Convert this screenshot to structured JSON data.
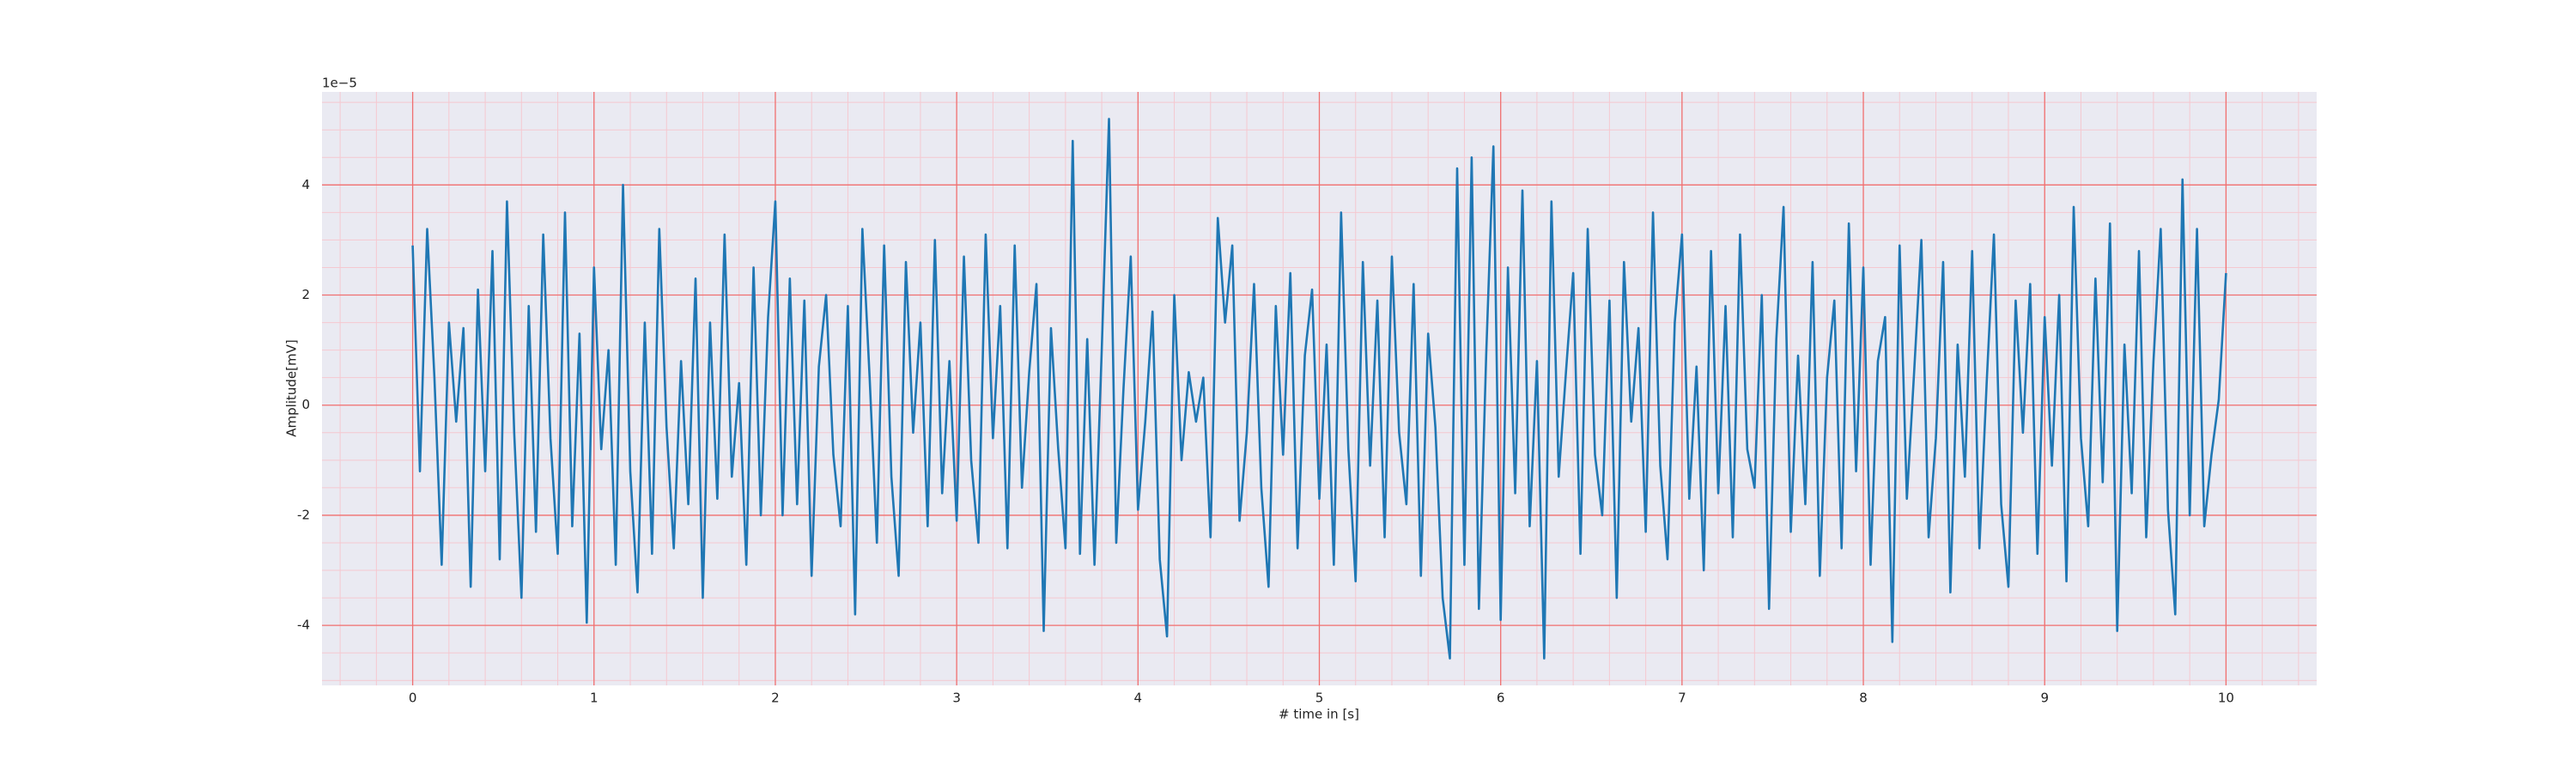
{
  "chart_data": {
    "type": "line",
    "xlabel": "# time in [s]",
    "ylabel": "Amplitude[mV]",
    "offset_text": "1e−5",
    "color": "#1f77b4",
    "background": "#eaeaf2",
    "grid": true,
    "grid_color": "#f07070",
    "minor_grid": {
      "x": 0.2,
      "y": 0.5,
      "color": "#f5c8d0"
    },
    "xlim": [
      -0.5,
      10.5
    ],
    "ylim": [
      -5.09,
      5.69
    ],
    "xticks": [
      0,
      1,
      2,
      3,
      4,
      5,
      6,
      7,
      8,
      9,
      10
    ],
    "yticks": [
      -4,
      -2,
      0,
      2,
      4
    ],
    "x": [
      0,
      0.04,
      0.08,
      0.12,
      0.16,
      0.2,
      0.24,
      0.28,
      0.32,
      0.36,
      0.4,
      0.44,
      0.48,
      0.52,
      0.56,
      0.6,
      0.64,
      0.68,
      0.72,
      0.76,
      0.8,
      0.84,
      0.88,
      0.92,
      0.96,
      1,
      1.04,
      1.08,
      1.12,
      1.16,
      1.2,
      1.24,
      1.28,
      1.32,
      1.36,
      1.4,
      1.44,
      1.48,
      1.52,
      1.56,
      1.6,
      1.64,
      1.68,
      1.72,
      1.76,
      1.8,
      1.84,
      1.88,
      1.92,
      1.96,
      2,
      2.04,
      2.08,
      2.12,
      2.16,
      2.2,
      2.24,
      2.28,
      2.32,
      2.36,
      2.4,
      2.44,
      2.48,
      2.52,
      2.56,
      2.6,
      2.64,
      2.68,
      2.72,
      2.76,
      2.8,
      2.84,
      2.88,
      2.92,
      2.96,
      3,
      3.04,
      3.08,
      3.12,
      3.16,
      3.2,
      3.24,
      3.28,
      3.32,
      3.36,
      3.4,
      3.44,
      3.48,
      3.52,
      3.56,
      3.6,
      3.64,
      3.68,
      3.72,
      3.76,
      3.8,
      3.84,
      3.88,
      3.92,
      3.96,
      4,
      4.04,
      4.08,
      4.12,
      4.16,
      4.2,
      4.24,
      4.28,
      4.32,
      4.36,
      4.4,
      4.44,
      4.48,
      4.52,
      4.56,
      4.6,
      4.64,
      4.68,
      4.72,
      4.76,
      4.8,
      4.84,
      4.88,
      4.92,
      4.96,
      5,
      5.04,
      5.08,
      5.12,
      5.16,
      5.2,
      5.24,
      5.28,
      5.32,
      5.36,
      5.4,
      5.44,
      5.48,
      5.52,
      5.56,
      5.6,
      5.64,
      5.68,
      5.72,
      5.76,
      5.8,
      5.84,
      5.88,
      5.92,
      5.96,
      6,
      6.04,
      6.08,
      6.12,
      6.16,
      6.2,
      6.24,
      6.28,
      6.32,
      6.36,
      6.4,
      6.44,
      6.48,
      6.52,
      6.56,
      6.6,
      6.64,
      6.68,
      6.72,
      6.76,
      6.8,
      6.84,
      6.88,
      6.92,
      6.96,
      7,
      7.04,
      7.08,
      7.12,
      7.16,
      7.2,
      7.24,
      7.28,
      7.32,
      7.36,
      7.4,
      7.44,
      7.48,
      7.52,
      7.56,
      7.6,
      7.64,
      7.68,
      7.72,
      7.76,
      7.8,
      7.84,
      7.88,
      7.92,
      7.96,
      8,
      8.04,
      8.08,
      8.12,
      8.16,
      8.2,
      8.24,
      8.28,
      8.32,
      8.36,
      8.4,
      8.44,
      8.48,
      8.52,
      8.56,
      8.6,
      8.64,
      8.68,
      8.72,
      8.76,
      8.8,
      8.84,
      8.88,
      8.92,
      8.96,
      9,
      9.04,
      9.08,
      9.12,
      9.16,
      9.2,
      9.24,
      9.28,
      9.32,
      9.36,
      9.4,
      9.44,
      9.48,
      9.52,
      9.56,
      9.6,
      9.64,
      9.68,
      9.72,
      9.76,
      9.8,
      9.84,
      9.88,
      9.92,
      9.96,
      10
    ],
    "values": [
      2.9,
      -1.2,
      3.2,
      0.5,
      -2.9,
      1.5,
      -0.3,
      1.4,
      -3.3,
      2.1,
      -1.2,
      2.8,
      -2.8,
      3.7,
      -0.5,
      -3.5,
      1.8,
      -2.3,
      3.1,
      -0.6,
      -2.7,
      3.5,
      -2.2,
      1.3,
      -3.95,
      2.5,
      -0.8,
      1.0,
      -2.9,
      4.0,
      -1.2,
      -3.4,
      1.5,
      -2.7,
      3.2,
      -0.4,
      -2.6,
      0.8,
      -1.8,
      2.3,
      -3.5,
      1.5,
      -1.7,
      3.1,
      -1.3,
      0.4,
      -2.9,
      2.5,
      -2.0,
      1.6,
      3.7,
      -2.0,
      2.3,
      -1.8,
      1.9,
      -3.1,
      0.7,
      2.0,
      -0.9,
      -2.2,
      1.8,
      -3.8,
      3.2,
      0.5,
      -2.5,
      2.9,
      -1.3,
      -3.1,
      2.6,
      -0.5,
      1.5,
      -2.2,
      3.0,
      -1.6,
      0.8,
      -2.1,
      2.7,
      -1.0,
      -2.5,
      3.1,
      -0.6,
      1.8,
      -2.6,
      2.9,
      -1.5,
      0.6,
      2.2,
      -4.1,
      1.4,
      -0.8,
      -2.6,
      4.8,
      -2.7,
      1.2,
      -2.9,
      1.0,
      5.2,
      -2.5,
      0.3,
      2.7,
      -1.9,
      -0.3,
      1.7,
      -2.8,
      -4.2,
      2.0,
      -1.0,
      0.6,
      -0.3,
      0.5,
      -2.4,
      3.4,
      1.5,
      2.9,
      -2.1,
      -0.5,
      2.2,
      -1.5,
      -3.3,
      1.8,
      -0.9,
      2.4,
      -2.6,
      0.9,
      2.1,
      -1.7,
      1.1,
      -2.9,
      3.5,
      -0.8,
      -3.2,
      2.6,
      -1.1,
      1.9,
      -2.4,
      2.7,
      -0.5,
      -1.8,
      2.2,
      -3.1,
      1.3,
      -0.4,
      -3.5,
      -4.6,
      4.3,
      -2.9,
      4.5,
      -3.7,
      0.9,
      4.7,
      -3.9,
      2.5,
      -1.6,
      3.9,
      -2.2,
      0.8,
      -4.6,
      3.7,
      -1.3,
      0.6,
      2.4,
      -2.7,
      3.2,
      -0.9,
      -2.0,
      1.9,
      -3.5,
      2.6,
      -0.3,
      1.4,
      -2.3,
      3.5,
      -1.1,
      -2.8,
      1.5,
      3.1,
      -1.7,
      0.7,
      -3.0,
      2.8,
      -1.6,
      1.8,
      -2.4,
      3.1,
      -0.8,
      -1.5,
      2.0,
      -3.7,
      1.2,
      3.6,
      -2.3,
      0.9,
      -1.8,
      2.6,
      -3.1,
      0.5,
      1.9,
      -2.6,
      3.3,
      -1.2,
      2.5,
      -2.9,
      0.8,
      1.6,
      -4.3,
      2.9,
      -1.7,
      0.6,
      3.0,
      -2.4,
      -0.6,
      2.6,
      -3.4,
      1.1,
      -1.3,
      2.8,
      -2.6,
      0.4,
      3.1,
      -1.8,
      -3.3,
      1.9,
      -0.5,
      2.2,
      -2.7,
      1.6,
      -1.1,
      2.0,
      -3.2,
      3.6,
      -0.6,
      -2.2,
      2.3,
      -1.4,
      3.3,
      -4.1,
      1.1,
      -1.6,
      2.8,
      -2.4,
      0.8,
      3.2,
      -1.9,
      -3.8,
      4.1,
      -2.0,
      3.2,
      -2.2,
      -0.9,
      0.1,
      2.4
    ]
  }
}
